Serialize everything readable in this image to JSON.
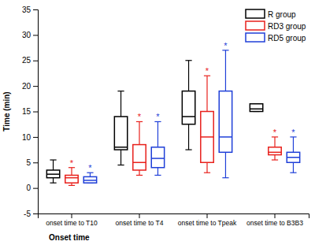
{
  "chart_data": {
    "type": "box",
    "x_label": "Onset time",
    "y_label": "Time (min)",
    "categories": [
      "onset time to T10",
      "onset time to T4",
      "onset time to Tpeak",
      "onset time to B3B3"
    ],
    "ylim": [
      -5,
      35
    ],
    "yticks": [
      -5,
      0,
      5,
      10,
      15,
      20,
      25,
      30,
      35
    ],
    "legend": "upper right",
    "series": [
      {
        "name": "R group",
        "color": "#000000",
        "values": [
          {
            "low": 1,
            "q1": 2,
            "median": 2.7,
            "q3": 3.5,
            "high": 5.5
          },
          {
            "low": 4.5,
            "q1": 7.5,
            "median": 8,
            "q3": 14,
            "high": 19
          },
          {
            "low": 7.5,
            "q1": 12.5,
            "median": 14,
            "q3": 19,
            "high": 25
          },
          {
            "low": 15,
            "q1": 15,
            "median": 15.5,
            "q3": 16.5,
            "high": 16.5
          }
        ]
      },
      {
        "name": "RD3 group",
        "color": "#e8211c",
        "values": [
          {
            "low": 0.5,
            "q1": 1,
            "median": 2,
            "q3": 2.5,
            "high": 4
          },
          {
            "low": 2.5,
            "q1": 3.5,
            "median": 5,
            "q3": 8.5,
            "high": 13
          },
          {
            "low": 3,
            "q1": 5,
            "median": 10,
            "q3": 15,
            "high": 22
          },
          {
            "low": 5.5,
            "q1": 6.5,
            "median": 7,
            "q3": 8,
            "high": 10
          }
        ],
        "annotations": [
          "*",
          "*",
          "*",
          "*"
        ]
      },
      {
        "name": "RD5 group",
        "color": "#1f3fd8",
        "values": [
          {
            "low": 1,
            "q1": 1,
            "median": 1.5,
            "q3": 2.2,
            "high": 3
          },
          {
            "low": 2.5,
            "q1": 4,
            "median": 5.8,
            "q3": 8,
            "high": 13
          },
          {
            "low": 2,
            "q1": 7,
            "median": 10,
            "q3": 19,
            "high": 27
          },
          {
            "low": 3,
            "q1": 5,
            "median": 6,
            "q3": 7,
            "high": 10
          }
        ],
        "annotations": [
          "*",
          "*",
          "*",
          "*"
        ]
      }
    ]
  }
}
